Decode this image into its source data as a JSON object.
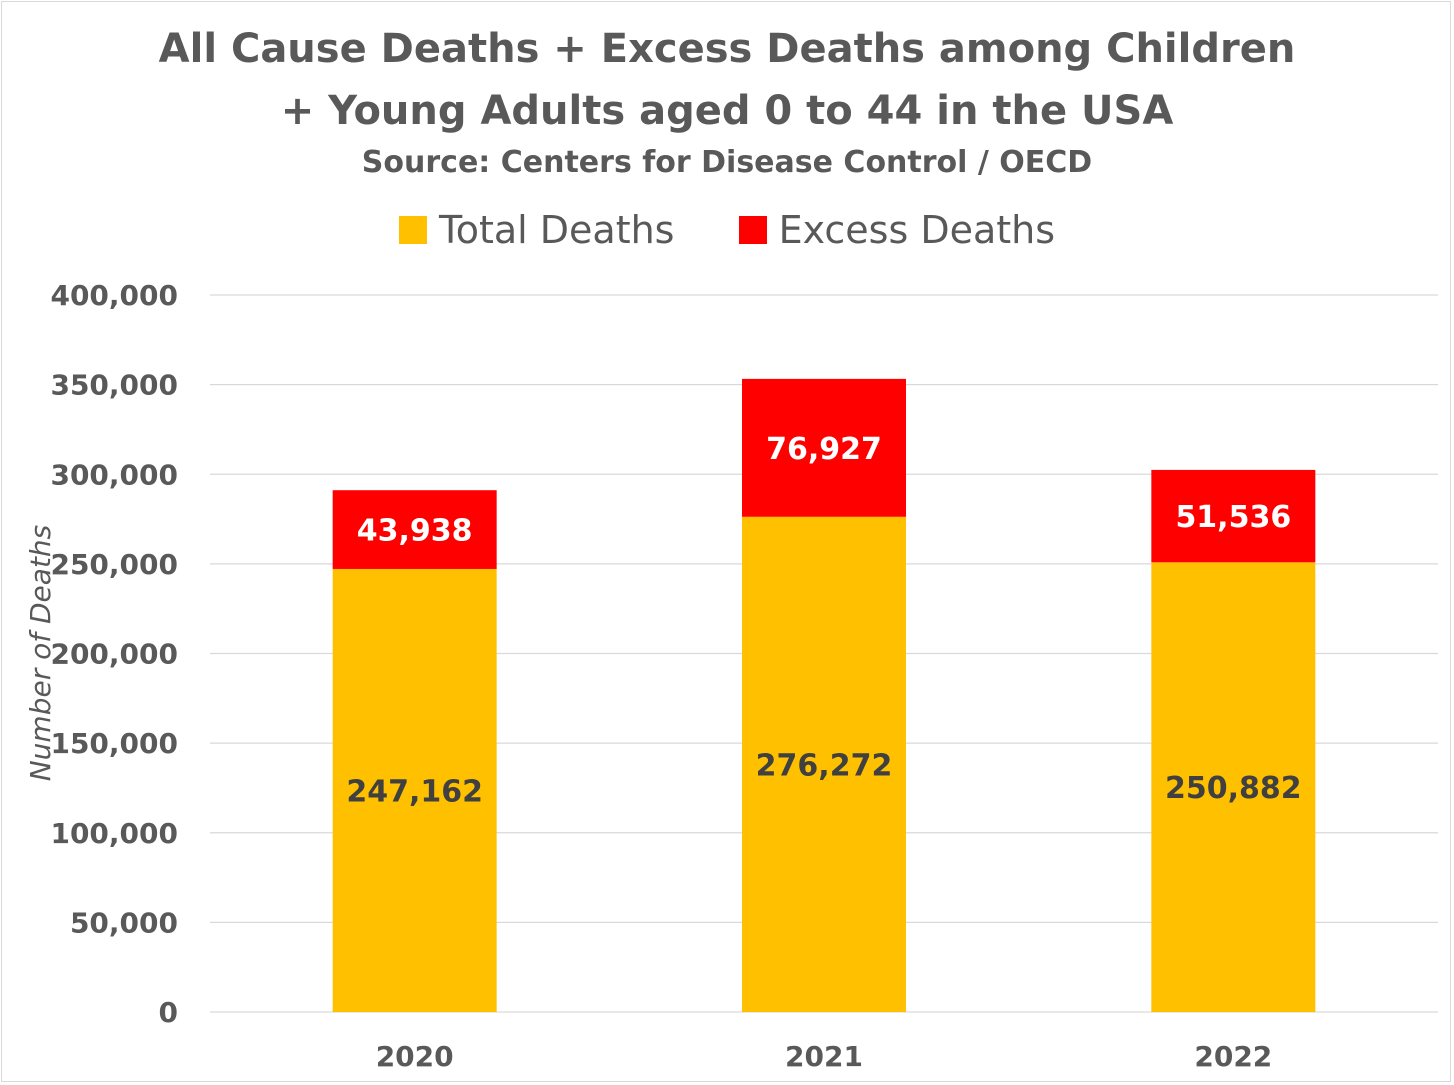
{
  "chart_data": {
    "type": "bar",
    "stacked": true,
    "title_line1": "All Cause Deaths + Excess Deaths among Children",
    "title_line2": "+ Young Adults aged 0 to 44 in the USA",
    "subtitle": "Source: Centers for Disease Control / OECD",
    "ylabel": "Number of Deaths",
    "xlabel": "",
    "categories": [
      "2020",
      "2021",
      "2022"
    ],
    "series": [
      {
        "name": "Total Deaths",
        "color": "#ffc000",
        "values": [
          247162,
          276272,
          250882
        ],
        "labels": [
          "247,162",
          "276,272",
          "250,882"
        ]
      },
      {
        "name": "Excess Deaths",
        "color": "#ff0000",
        "values": [
          43938,
          76927,
          51536
        ],
        "labels": [
          "43,938",
          "76,927",
          "51,536"
        ]
      }
    ],
    "ylim": [
      0,
      400000
    ],
    "yticks": [
      0,
      50000,
      100000,
      150000,
      200000,
      250000,
      300000,
      350000,
      400000
    ],
    "ytick_labels": [
      "0",
      "50,000",
      "100,000",
      "150,000",
      "200,000",
      "250,000",
      "300,000",
      "350,000",
      "400,000"
    ],
    "grid": true,
    "legend_position": "top"
  }
}
